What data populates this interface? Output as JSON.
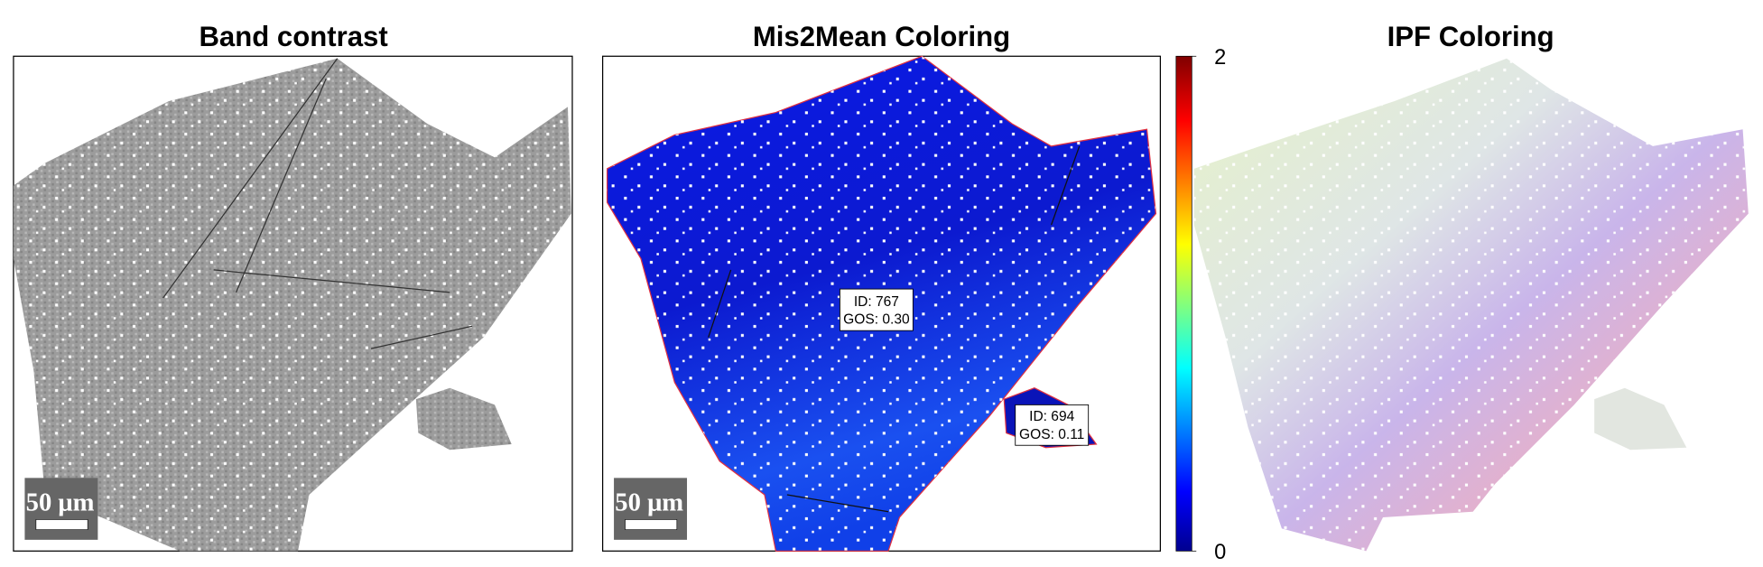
{
  "panels": [
    {
      "title": "Band contrast",
      "scale_bar": "50 μm"
    },
    {
      "title": "Mis2Mean Coloring",
      "scale_bar": "50 μm",
      "annotations": [
        {
          "id": "ID: 767",
          "gos": "GOS: 0.30"
        },
        {
          "id": "ID: 694",
          "gos": "GOS: 0.11"
        }
      ]
    },
    {
      "title": "IPF Coloring"
    }
  ],
  "colorbar": {
    "lim": [
      0,
      2
    ],
    "ticks": [
      0,
      2
    ]
  }
}
